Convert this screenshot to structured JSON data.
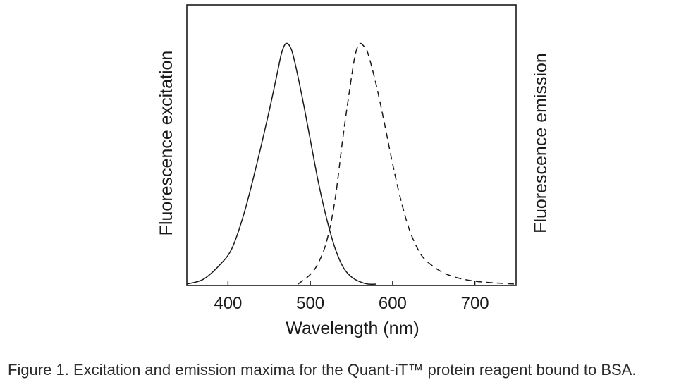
{
  "caption": {
    "label": "Figure 1.",
    "text": " Excitation and emission maxima for the Quant-iT™ protein reagent bound to BSA."
  },
  "chart_data": {
    "type": "line",
    "title": "",
    "xlabel": "Wavelength (nm)",
    "ylabel_left": "Fluorescence excitation",
    "ylabel_right": "Fluorescence emission",
    "xlim": [
      350,
      750
    ],
    "ylim": [
      0,
      1
    ],
    "x_ticks": [
      400,
      500,
      600,
      700
    ],
    "y_ticks_shown": false,
    "grid": false,
    "legend": "none",
    "series": [
      {
        "style": "solid",
        "x": [
          350,
          370,
          390,
          405,
          420,
          435,
          450,
          460,
          465,
          470,
          475,
          480,
          490,
          500,
          510,
          520,
          530,
          540,
          550,
          560,
          570,
          580
        ],
        "y": [
          0.0,
          0.02,
          0.08,
          0.15,
          0.3,
          0.5,
          0.72,
          0.88,
          0.96,
          1.0,
          0.99,
          0.94,
          0.78,
          0.6,
          0.42,
          0.27,
          0.15,
          0.07,
          0.03,
          0.01,
          0.0,
          0.0
        ]
      },
      {
        "style": "dashed",
        "x": [
          485,
          500,
          510,
          520,
          530,
          540,
          550,
          555,
          560,
          565,
          570,
          580,
          590,
          600,
          610,
          620,
          630,
          640,
          660,
          680,
          700,
          720,
          740,
          750
        ],
        "y": [
          0.0,
          0.04,
          0.09,
          0.18,
          0.35,
          0.62,
          0.86,
          0.96,
          1.0,
          0.99,
          0.96,
          0.83,
          0.67,
          0.5,
          0.35,
          0.23,
          0.15,
          0.1,
          0.05,
          0.025,
          0.012,
          0.006,
          0.002,
          0.0
        ]
      }
    ]
  }
}
